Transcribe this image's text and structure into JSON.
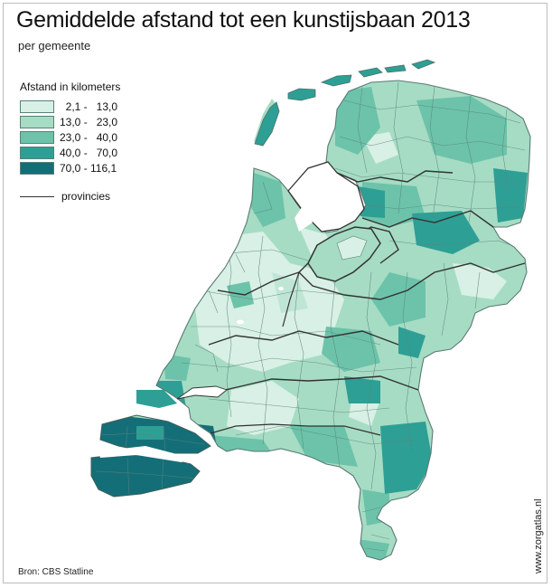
{
  "title": "Gemiddelde afstand tot een kunstijsbaan 2013",
  "subtitle": "per gemeente",
  "legend": {
    "title": "Afstand in kilometers",
    "classes": [
      {
        "range": "  2,1 -   13,0",
        "color": "#d8f0e5"
      },
      {
        "range": "13,0 -   23,0",
        "color": "#a6dcc4"
      },
      {
        "range": "23,0 -   40,0",
        "color": "#6cc3aa"
      },
      {
        "range": "40,0 -   70,0",
        "color": "#2e9f95"
      },
      {
        "range": "70,0 - 116,1",
        "color": "#146e78"
      }
    ],
    "provinces_label": "provincies"
  },
  "source": "Bron: CBS Statline",
  "credit": "www.zorgatlas.nl",
  "colors": {
    "border": "#4e6f69",
    "province": "#333333",
    "water": "#ffffff"
  }
}
